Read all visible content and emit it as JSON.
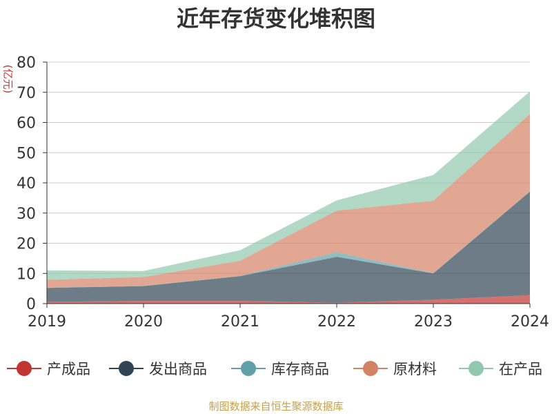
{
  "title": "近年存货变化堆积图",
  "unit": "(亿元)",
  "source": "制图数据来自恒生聚源数据库",
  "chart_data": {
    "type": "area",
    "stacked": true,
    "title": "近年存货变化堆积图",
    "ylabel": "(亿元)",
    "categories": [
      "2019",
      "2020",
      "2021",
      "2022",
      "2023",
      "2024"
    ],
    "ylim": [
      0,
      80
    ],
    "yticks": [
      0,
      10,
      20,
      30,
      40,
      50,
      60,
      70,
      80
    ],
    "grid": true,
    "legend_position": "bottom",
    "series": [
      {
        "name": "产成品",
        "color": "#c23531",
        "values": [
          0.6,
          0.9,
          0.9,
          0.3,
          1.3,
          2.8
        ]
      },
      {
        "name": "发出商品",
        "color": "#2f4554",
        "values": [
          4.6,
          4.9,
          8.2,
          15.2,
          8.7,
          34.3
        ]
      },
      {
        "name": "库存商品",
        "color": "#61a0a8",
        "values": [
          0.1,
          0.1,
          0.1,
          1.5,
          0.1,
          0.1
        ]
      },
      {
        "name": "原材料",
        "color": "#d48265",
        "values": [
          2.6,
          2.9,
          5.0,
          13.8,
          24.0,
          25.6
        ]
      },
      {
        "name": "在产品",
        "color": "#91c7ae",
        "values": [
          3.1,
          2.0,
          3.5,
          3.4,
          8.5,
          7.5
        ]
      }
    ]
  }
}
